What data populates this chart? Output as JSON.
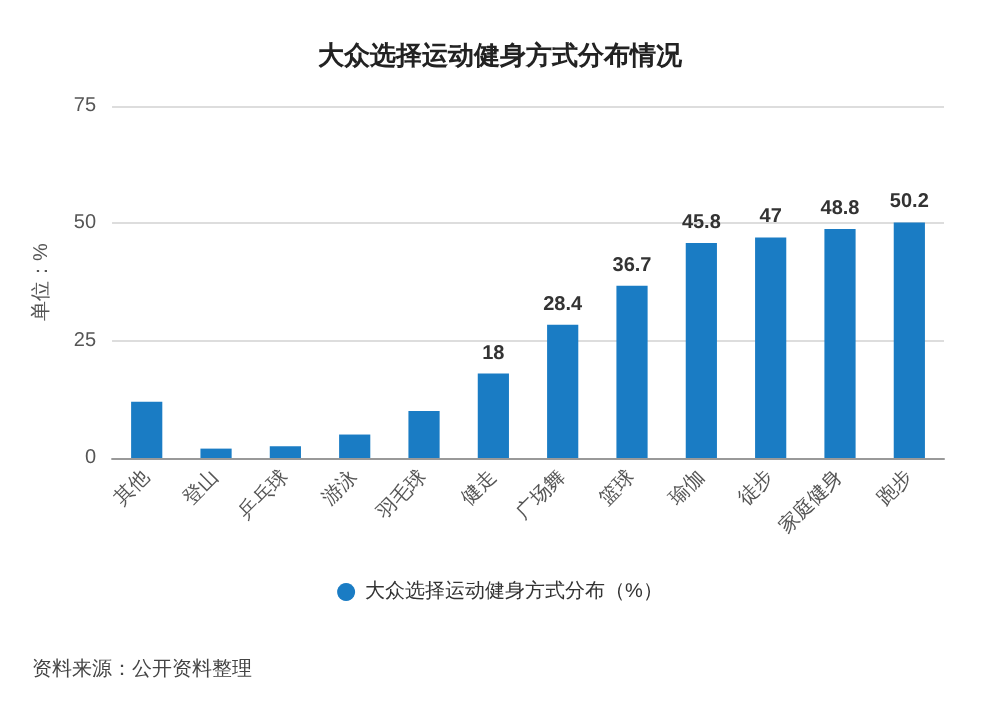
{
  "chart_data": {
    "type": "bar",
    "title": "大众选择运动健身方式分布情况",
    "ylabel": "单位：%",
    "categories": [
      "其他",
      "登山",
      "乒乓球",
      "游泳",
      "羽毛球",
      "健走",
      "广场舞",
      "篮球",
      "瑜伽",
      "徒步",
      "家庭健身",
      "跑步"
    ],
    "series": [
      {
        "name": "大众选择运动健身方式分布（%）",
        "color": "#1a7cc4",
        "values": [
          12,
          2,
          2.5,
          5,
          10,
          18,
          28.4,
          36.7,
          45.8,
          47,
          48.8,
          50.2
        ],
        "value_labels": [
          null,
          null,
          null,
          null,
          null,
          "18",
          "28.4",
          "36.7",
          "45.8",
          "47",
          "48.8",
          "50.2"
        ]
      }
    ],
    "ylim": [
      0,
      75
    ],
    "yticks": [
      0,
      25,
      50,
      75
    ],
    "grid": "y",
    "legend": "bottom",
    "annotations": [
      "资料来源：公开资料整理"
    ]
  }
}
